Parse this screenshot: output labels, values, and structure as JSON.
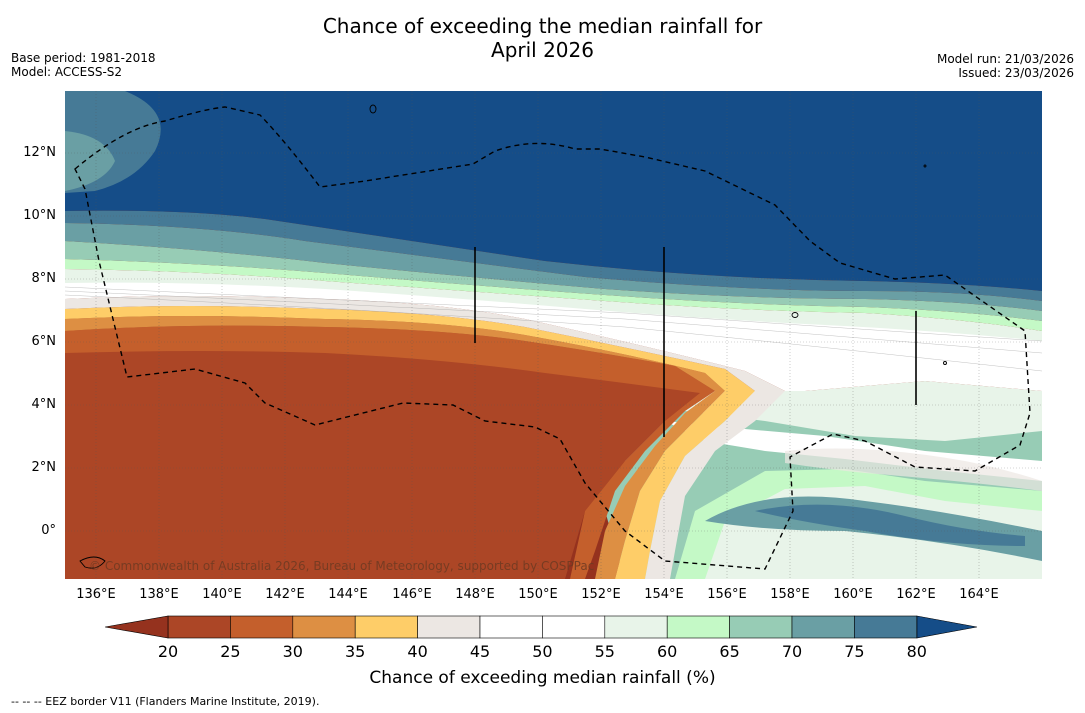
{
  "title": {
    "line1": "Chance of exceeding the median rainfall for",
    "line2": "April 2026"
  },
  "meta_left": {
    "base_period": "Base period: 1981-2018",
    "model": "Model: ACCESS-S2"
  },
  "meta_right": {
    "model_run": "Model run: 21/03/2026",
    "issued": "Issued: 23/03/2026"
  },
  "latitude_labels": [
    "12°N",
    "10°N",
    "8°N",
    "6°N",
    "4°N",
    "2°N",
    "0°"
  ],
  "longitude_labels": [
    "136°E",
    "138°E",
    "140°E",
    "142°E",
    "144°E",
    "146°E",
    "148°E",
    "150°E",
    "152°E",
    "154°E",
    "156°E",
    "158°E",
    "160°E",
    "162°E",
    "164°E"
  ],
  "credit": "© Commonwealth of Australia 2026, Bureau of Meteorology, supported by COSPPac",
  "colorbar": {
    "title": "Chance of exceeding median rainfall (%)",
    "tick_labels": [
      "20",
      "25",
      "30",
      "35",
      "40",
      "45",
      "50",
      "55",
      "60",
      "65",
      "70",
      "75",
      "80"
    ],
    "colors": [
      "#95321e",
      "#ac4626",
      "#c45f2c",
      "#dd8f43",
      "#fecd68",
      "#ece7e3",
      "#ffffff",
      "#ffffff",
      "#e8f4e9",
      "#c4f9c6",
      "#97ccb5",
      "#6a9fa4",
      "#467a96"
    ],
    "under_color": "#95321e",
    "over_color": "#154d88"
  },
  "legend_note": "--  --  -- EEZ border V11 (Flanders Marine Institute, 2019)."
}
